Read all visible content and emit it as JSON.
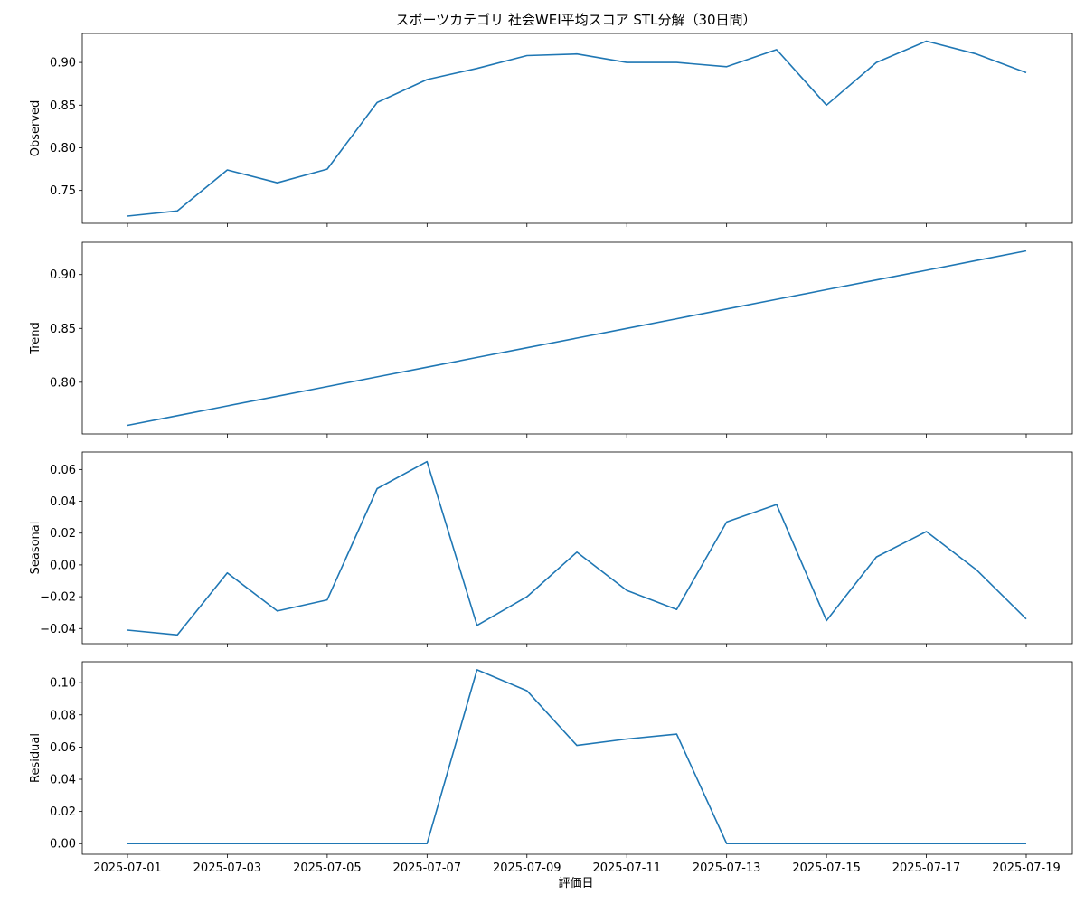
{
  "chart_data": {
    "type": "line",
    "title": "スポーツカテゴリ 社会WEI平均スコア STL分解（30日間）",
    "xlabel": "評価日",
    "x": [
      "2025-07-01",
      "2025-07-02",
      "2025-07-03",
      "2025-07-04",
      "2025-07-05",
      "2025-07-06",
      "2025-07-07",
      "2025-07-08",
      "2025-07-09",
      "2025-07-10",
      "2025-07-11",
      "2025-07-12",
      "2025-07-13",
      "2025-07-14",
      "2025-07-15",
      "2025-07-16",
      "2025-07-17",
      "2025-07-18",
      "2025-07-19"
    ],
    "xticks": [
      "2025-07-01",
      "2025-07-03",
      "2025-07-05",
      "2025-07-07",
      "2025-07-09",
      "2025-07-11",
      "2025-07-13",
      "2025-07-15",
      "2025-07-17",
      "2025-07-19"
    ],
    "line_color": "#1f77b4",
    "panels": [
      {
        "key": "observed",
        "ylabel": "Observed",
        "ylim": [
          0.7115,
          0.934
        ],
        "yticks": [
          0.75,
          0.8,
          0.85,
          0.9
        ],
        "ytick_labels": [
          "0.75",
          "0.80",
          "0.85",
          "0.90"
        ],
        "values": [
          0.72,
          0.726,
          0.774,
          0.759,
          0.775,
          0.853,
          0.88,
          0.893,
          0.908,
          0.91,
          0.9,
          0.9,
          0.895,
          0.915,
          0.85,
          0.9,
          0.925,
          0.91,
          0.888
        ]
      },
      {
        "key": "trend",
        "ylabel": "Trend",
        "ylim": [
          0.752,
          0.93
        ],
        "yticks": [
          0.8,
          0.85,
          0.9
        ],
        "ytick_labels": [
          "0.80",
          "0.85",
          "0.90"
        ],
        "values": [
          0.76,
          0.769,
          0.778,
          0.787,
          0.796,
          0.805,
          0.814,
          0.823,
          0.832,
          0.841,
          0.85,
          0.859,
          0.868,
          0.877,
          0.886,
          0.895,
          0.904,
          0.913,
          0.922
        ]
      },
      {
        "key": "seasonal",
        "ylabel": "Seasonal",
        "ylim": [
          -0.0495,
          0.071
        ],
        "yticks": [
          -0.04,
          -0.02,
          0.0,
          0.02,
          0.04,
          0.06
        ],
        "ytick_labels": [
          "−0.04",
          "−0.02",
          "0.00",
          "0.02",
          "0.04",
          "0.06"
        ],
        "values": [
          -0.041,
          -0.044,
          -0.005,
          -0.029,
          -0.022,
          0.048,
          0.065,
          -0.038,
          -0.02,
          0.008,
          -0.016,
          -0.028,
          0.027,
          0.038,
          -0.035,
          0.005,
          0.021,
          -0.003,
          -0.034
        ]
      },
      {
        "key": "residual",
        "ylabel": "Residual",
        "ylim": [
          -0.0066,
          0.113
        ],
        "yticks": [
          0.0,
          0.02,
          0.04,
          0.06,
          0.08,
          0.1
        ],
        "ytick_labels": [
          "0.00",
          "0.02",
          "0.04",
          "0.06",
          "0.08",
          "0.10"
        ],
        "values": [
          0.0,
          0.0,
          0.0,
          0.0,
          0.0,
          0.0,
          0.0,
          0.108,
          0.095,
          0.061,
          0.065,
          0.068,
          0.0,
          0.0,
          0.0,
          0.0,
          0.0,
          0.0,
          0.0
        ]
      }
    ]
  }
}
